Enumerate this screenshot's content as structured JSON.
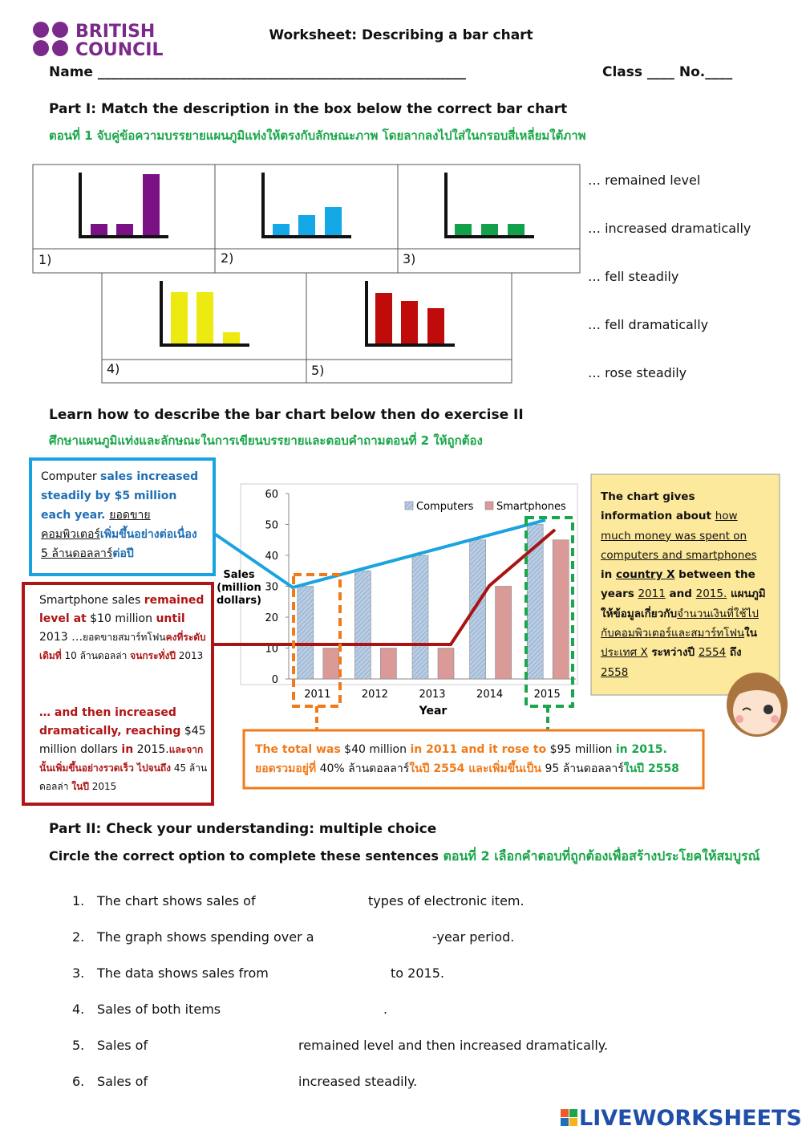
{
  "header": {
    "logo": [
      "BRITISH",
      "COUNCIL"
    ],
    "title": "Worksheet: Describing a bar chart",
    "name": "Name ______________________________________________________",
    "class_no": "Class ____ No.____"
  },
  "part1": {
    "heading": "Part I: Match the description in the box below the correct bar chart",
    "thai": "ตอนที่ 1 จับคู่ข้อความบรรยายแผนภูมิแท่งให้ตรงกับลักษณะภาพ โดยลากลงไปใส่ในกรอบสี่เหลี่ยมใต้ภาพ",
    "labels": [
      "1)",
      "2)",
      "3)",
      "4)",
      "5)"
    ],
    "options": [
      "… remained level",
      "… increased dramatically",
      "… fell steadily",
      "… fell dramatically",
      "… rose steadily"
    ]
  },
  "learn": {
    "heading": "Learn how to describe the bar chart below then do exercise II",
    "thai": "ศึกษาแผนภูมิแท่งและลักษณะในการเขียนบรรยายและตอบคำถามตอนที่ 2 ให้ถูกต้อง"
  },
  "chart_data": {
    "type": "bar",
    "categories": [
      "2011",
      "2012",
      "2013",
      "2014",
      "2015"
    ],
    "series": [
      {
        "name": "Computers",
        "color": "#b8cde4",
        "values": [
          30,
          35,
          40,
          45,
          50
        ]
      },
      {
        "name": "Smartphones",
        "color": "#d99a98",
        "values": [
          10,
          10,
          10,
          30,
          45
        ]
      }
    ],
    "ylim": [
      0,
      60
    ],
    "yticks": [
      0,
      10,
      20,
      30,
      40,
      50,
      60
    ],
    "ylabel": [
      "Sales",
      "(million",
      "dollars)"
    ],
    "xlabel": "Year"
  },
  "notes": {
    "computer": [
      {
        "text": "Computer ",
        "style": "k"
      },
      {
        "text": "sales increased steadily by",
        "style": "b"
      },
      {
        "text": " $5 million",
        "style": "b"
      },
      {
        "text": " each year. ",
        "style": "b"
      },
      {
        "text": "ยอดขายคอมพิวเตอร์",
        "style": "u"
      },
      {
        "text": "เพิ่มขึ้นอย่างต่อเนื่อง",
        "style": "b"
      },
      {
        "text": " 5 ล้านดอลลาร์",
        "style": "u"
      },
      {
        "text": "ต่อปี",
        "style": "b"
      }
    ],
    "smartphone": [
      {
        "text": "Smartphone sales ",
        "style": "k"
      },
      {
        "text": "remained level at",
        "style": "r"
      },
      {
        "text": " $10 million ",
        "style": "k"
      },
      {
        "text": "until",
        "style": "r"
      },
      {
        "text": " 2013 …",
        "style": "k"
      },
      {
        "text": "ยอดขายสมาร์ทโฟน",
        "style": "k s"
      },
      {
        "text": "คงที่ระดับเดิมที่",
        "style": "r s"
      },
      {
        "text": " 10 ล้านดอลล่า ",
        "style": "k s"
      },
      {
        "text": "จนกระทั่งปี",
        "style": "r s"
      },
      {
        "text": " 2013",
        "style": "k s"
      }
    ],
    "smartphone2": [
      {
        "text": "… and then increased dramatically, reaching",
        "style": "r"
      },
      {
        "text": " $45 million dollars ",
        "style": "k"
      },
      {
        "text": "in",
        "style": "r"
      },
      {
        "text": " 2015.",
        "style": "k"
      },
      {
        "text": "และจากนั้นเพิ่มขึ้นอย่างรวดเร็ว ไปจนถึง",
        "style": "r s"
      },
      {
        "text": " 45 ล้านดอลล่า ",
        "style": "k s"
      },
      {
        "text": "ในปี",
        "style": "r s"
      },
      {
        "text": " 2015",
        "style": "k s"
      }
    ],
    "total": [
      {
        "text": "The total was",
        "style": "o"
      },
      {
        "text": " $40 million ",
        "style": "k"
      },
      {
        "text": "in 2011 and it rose to",
        "style": "o"
      },
      {
        "text": " $95 million ",
        "style": "k"
      },
      {
        "text": "in 2015.",
        "style": "g"
      }
    ],
    "total_thai": [
      {
        "text": "ยอดรวมอยู่ที่",
        "style": "o"
      },
      {
        "text": " 40% ล้านดอลลาร์",
        "style": "k"
      },
      {
        "text": "ในปี 2554 และเพิ่มขึ้นเป็น",
        "style": "o"
      },
      {
        "text": " 95 ล้านดอลลาร์",
        "style": "k"
      },
      {
        "text": "ในปี 2558",
        "style": "g"
      }
    ],
    "summary": [
      {
        "text": "The chart gives information about ",
        "style": "kb"
      },
      {
        "text": "how much money was spent on computers and smartphones",
        "style": "u"
      },
      {
        "text": " in ",
        "style": "kb"
      },
      {
        "text": "country X",
        "style": "kb u"
      },
      {
        "text": " between the years ",
        "style": "kb"
      },
      {
        "text": "2011",
        "style": "u"
      },
      {
        "text": " and ",
        "style": "kb"
      },
      {
        "text": "2015.",
        "style": "u"
      },
      {
        "text": " แผนภูมิให้ข้อมูลเกี่ยวกับ",
        "style": "kb"
      },
      {
        "text": "จำนวนเงินที่ใช้ไปกับคอมพิวเตอร์และสมาร์ทโฟน",
        "style": "u"
      },
      {
        "text": "ใน",
        "style": "kb"
      },
      {
        "text": "ประเทศ X",
        "style": "u"
      },
      {
        "text": " ระหว่างปี ",
        "style": "kb"
      },
      {
        "text": "2554",
        "style": "u"
      },
      {
        "text": " ถึง ",
        "style": "kb"
      },
      {
        "text": "2558",
        "style": "u"
      }
    ]
  },
  "part2": {
    "heading": "Part II: Check your understanding: multiple choice",
    "instruction": [
      {
        "text": "Circle the correct option to complete these sentences ",
        "style": "kb"
      },
      {
        "text": "ตอนที่ 2 เลือกคำตอบที่ถูกต้องเพื่อสร้างประโยคให้สมบูรณ์",
        "style": "g"
      }
    ],
    "questions": [
      {
        "number": "1.",
        "before": "The chart shows sales of",
        "after": "types of electronic item."
      },
      {
        "number": "2.",
        "before": "The graph shows spending over a",
        "after": "-year period."
      },
      {
        "number": "3.",
        "before": "The data shows sales from",
        "after": "to 2015."
      },
      {
        "number": "4.",
        "before": "Sales of both items",
        "after": "."
      },
      {
        "number": "5.",
        "before": "Sales of",
        "after": "remained level and then increased dramatically."
      },
      {
        "number": "6.",
        "before": "Sales of",
        "after": "increased steadily."
      }
    ]
  },
  "footer": {
    "brand": "LIVEWORKSHEETS"
  }
}
